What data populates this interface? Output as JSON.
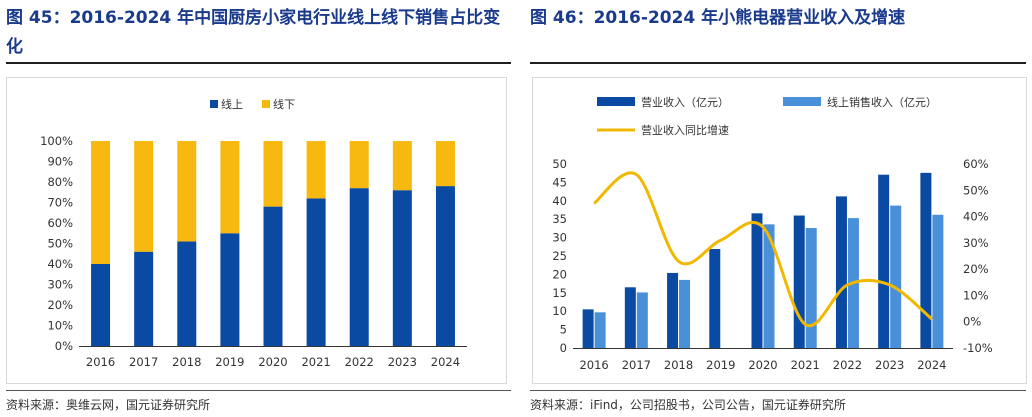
{
  "figures": [
    {
      "title": "图 45：2016-2024 年中国厨房小家电行业线上线下销售占比变化",
      "source": "资料来源：奥维云网，国元证券研究所"
    },
    {
      "title": "图 46：2016-2024 年小熊电器营业收入及增速",
      "source": "资料来源：iFind，公司招股书，公司公告，国元证券研究所"
    }
  ],
  "colors": {
    "online": "#0b4aa2",
    "offline": "#f7b90f",
    "revenue": "#0b4aa2",
    "online_revenue": "#4a90d9",
    "growth": "#f0b800",
    "title": "#1a3a8c"
  },
  "chart_data": [
    {
      "type": "bar",
      "stacked": true,
      "categories": [
        "2016",
        "2017",
        "2018",
        "2019",
        "2020",
        "2021",
        "2022",
        "2023",
        "2024"
      ],
      "series": [
        {
          "name": "线上",
          "values": [
            40,
            46,
            51,
            55,
            68,
            72,
            77,
            76,
            78
          ]
        },
        {
          "name": "线下",
          "values": [
            60,
            54,
            49,
            45,
            32,
            28,
            23,
            24,
            22
          ]
        }
      ],
      "ylim": [
        0,
        100
      ],
      "yticks": [
        "0%",
        "10%",
        "20%",
        "30%",
        "40%",
        "50%",
        "60%",
        "70%",
        "80%",
        "90%",
        "100%"
      ],
      "legend": "top-center",
      "grid": false
    },
    {
      "type": "bar",
      "categories": [
        "2016",
        "2017",
        "2018",
        "2019",
        "2020",
        "2021",
        "2022",
        "2023",
        "2024"
      ],
      "series": [
        {
          "name": "营业收入（亿元）",
          "kind": "bar",
          "axis": "left",
          "values": [
            10.5,
            16.5,
            20.4,
            26.9,
            36.6,
            36.0,
            41.2,
            47.1,
            47.6
          ]
        },
        {
          "name": "线上销售收入（亿元）",
          "kind": "bar",
          "axis": "left",
          "values": [
            9.7,
            15.1,
            18.5,
            null,
            33.6,
            32.6,
            35.3,
            38.7,
            36.2
          ]
        },
        {
          "name": "营业收入同比增速",
          "kind": "line",
          "axis": "right",
          "values": [
            45,
            56,
            23,
            31,
            36,
            -1,
            14,
            14,
            1
          ]
        }
      ],
      "ylim_left": [
        0,
        50
      ],
      "yticks_left": [
        "0",
        "5",
        "10",
        "15",
        "20",
        "25",
        "30",
        "35",
        "40",
        "45",
        "50"
      ],
      "ylim_right": [
        -10,
        60
      ],
      "yticks_right": [
        "-10%",
        "0%",
        "10%",
        "20%",
        "30%",
        "40%",
        "50%",
        "60%"
      ],
      "legend": "top",
      "grid": false
    }
  ]
}
